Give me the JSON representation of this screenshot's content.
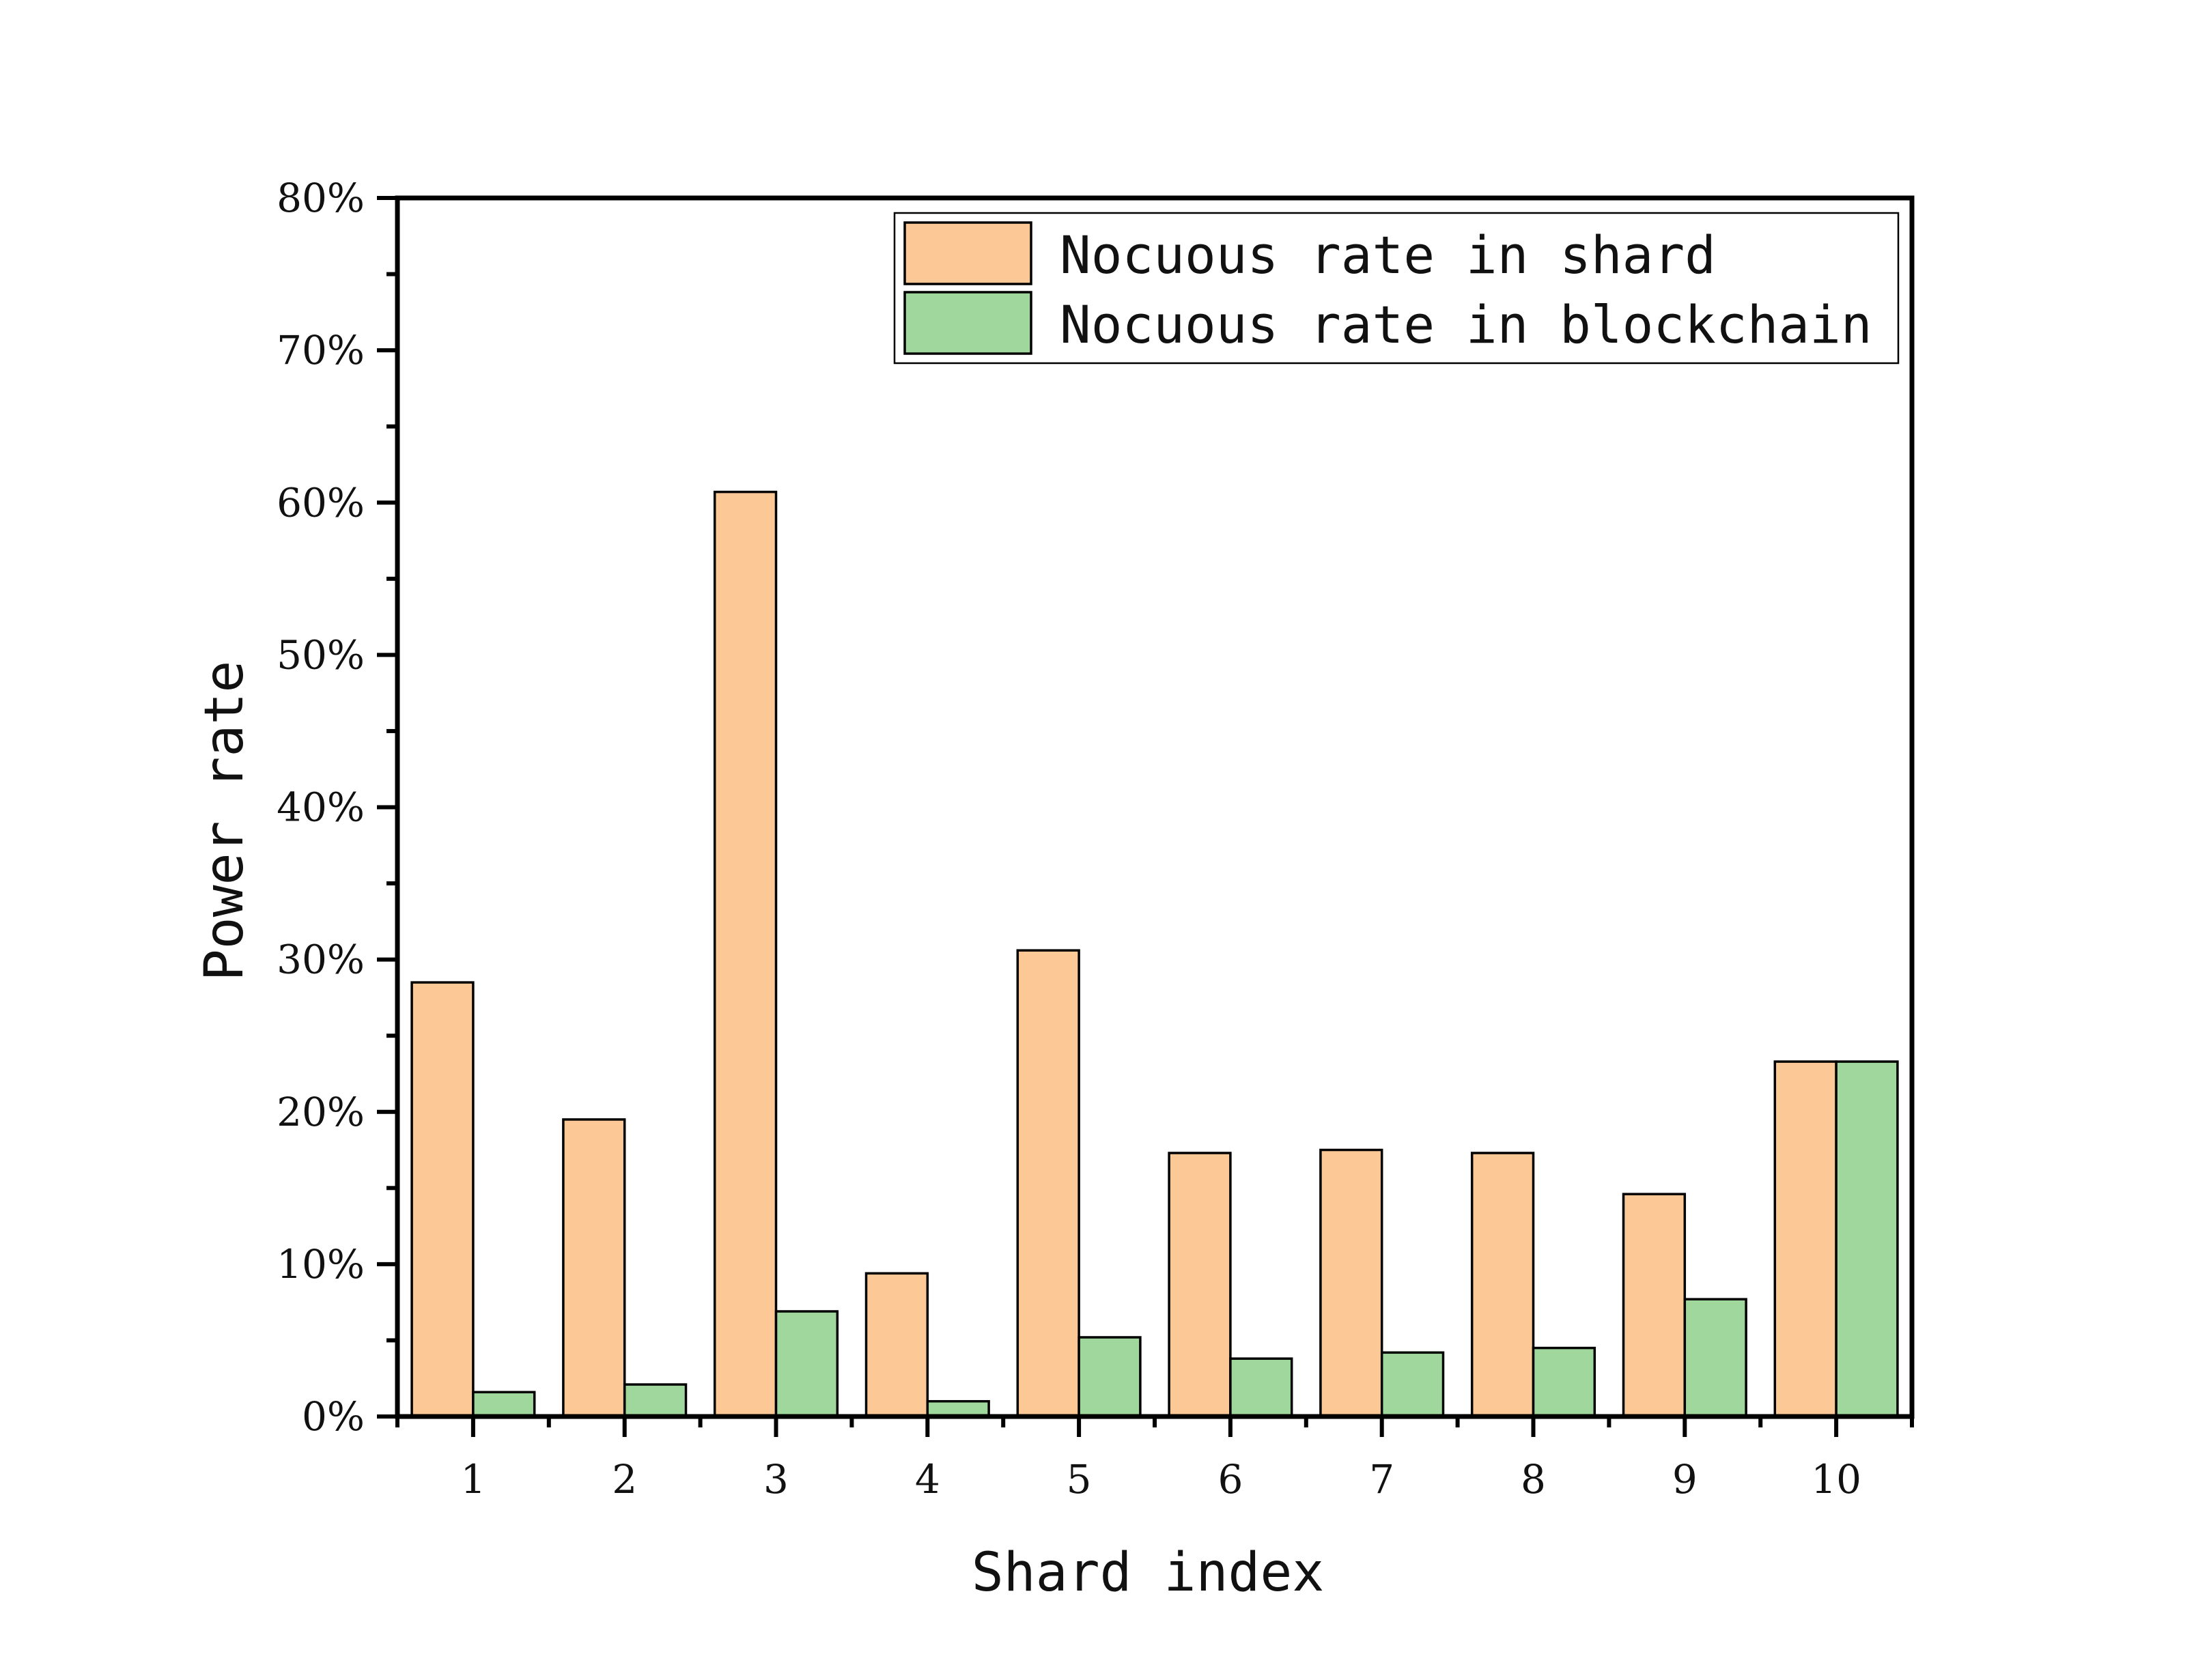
{
  "chart_data": {
    "type": "bar",
    "categories": [
      "1",
      "2",
      "3",
      "4",
      "5",
      "6",
      "7",
      "8",
      "9",
      "10"
    ],
    "series": [
      {
        "name": "Nocuous rate in shard",
        "color": "#FCC896",
        "values": [
          28.5,
          19.5,
          60.7,
          9.4,
          30.6,
          17.3,
          17.5,
          17.3,
          14.6,
          23.3
        ]
      },
      {
        "name": "Nocuous rate in blockchain",
        "color": "#9FD79C",
        "values": [
          1.6,
          2.1,
          6.9,
          1.0,
          5.2,
          3.8,
          4.2,
          4.5,
          7.7,
          23.3
        ]
      }
    ],
    "title": "",
    "xlabel": "Shard index",
    "ylabel": "Power rate",
    "ylim": [
      0,
      80
    ],
    "yticks": [
      "0%",
      "10%",
      "20%",
      "30%",
      "40%",
      "50%",
      "60%",
      "70%",
      "80%"
    ],
    "legend_position": "top-right",
    "grid": false
  }
}
